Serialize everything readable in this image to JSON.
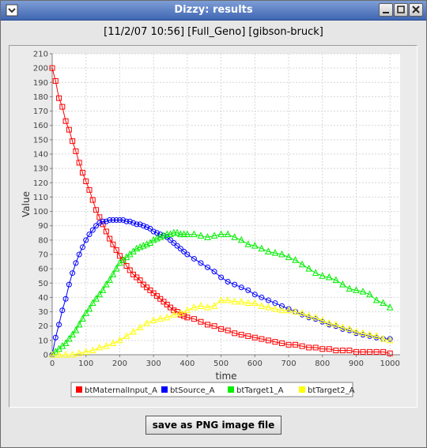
{
  "window": {
    "title": "Dizzy: results",
    "controls": [
      "minimize-icon",
      "maximize-icon",
      "close-icon"
    ]
  },
  "header": {
    "text": "[11/2/07 10:56] [Full_Geno] [gibson-bruck]"
  },
  "button": {
    "label": "save as PNG image file"
  },
  "chart_data": {
    "type": "line",
    "title": "",
    "xlabel": "time",
    "ylabel": "Value",
    "xlim": [
      0,
      1030
    ],
    "ylim": [
      0,
      210
    ],
    "xticks": [
      0,
      100,
      200,
      300,
      400,
      500,
      600,
      700,
      800,
      900,
      1000
    ],
    "yticks": [
      0,
      10,
      20,
      30,
      40,
      50,
      60,
      70,
      80,
      90,
      100,
      110,
      120,
      130,
      140,
      150,
      160,
      170,
      180,
      190,
      200,
      210
    ],
    "grid": true,
    "legend_position": "bottom",
    "series": [
      {
        "name": "btMaternalInput_A",
        "color": "#ff0000",
        "marker": "square",
        "points": [
          [
            0,
            200
          ],
          [
            10,
            191
          ],
          [
            20,
            179
          ],
          [
            30,
            173
          ],
          [
            40,
            163
          ],
          [
            50,
            157
          ],
          [
            60,
            149
          ],
          [
            70,
            142
          ],
          [
            80,
            134
          ],
          [
            90,
            127
          ],
          [
            100,
            121
          ],
          [
            110,
            115
          ],
          [
            120,
            108
          ],
          [
            130,
            101
          ],
          [
            140,
            96
          ],
          [
            150,
            91
          ],
          [
            160,
            86
          ],
          [
            170,
            81
          ],
          [
            180,
            77
          ],
          [
            190,
            73
          ],
          [
            200,
            69
          ],
          [
            210,
            66
          ],
          [
            220,
            62
          ],
          [
            230,
            59
          ],
          [
            240,
            56
          ],
          [
            250,
            54
          ],
          [
            260,
            52
          ],
          [
            270,
            49
          ],
          [
            280,
            47
          ],
          [
            290,
            45
          ],
          [
            300,
            43
          ],
          [
            310,
            41
          ],
          [
            320,
            39
          ],
          [
            330,
            37
          ],
          [
            340,
            35
          ],
          [
            350,
            33
          ],
          [
            360,
            31
          ],
          [
            370,
            30
          ],
          [
            380,
            28
          ],
          [
            390,
            27
          ],
          [
            400,
            26
          ],
          [
            420,
            25
          ],
          [
            440,
            23
          ],
          [
            460,
            21
          ],
          [
            480,
            20
          ],
          [
            500,
            18
          ],
          [
            520,
            17
          ],
          [
            540,
            15
          ],
          [
            560,
            14
          ],
          [
            580,
            13
          ],
          [
            600,
            12
          ],
          [
            620,
            11
          ],
          [
            640,
            10
          ],
          [
            660,
            9
          ],
          [
            680,
            8
          ],
          [
            700,
            7
          ],
          [
            720,
            7
          ],
          [
            740,
            6
          ],
          [
            760,
            5
          ],
          [
            780,
            5
          ],
          [
            800,
            4
          ],
          [
            820,
            4
          ],
          [
            840,
            3
          ],
          [
            860,
            3
          ],
          [
            880,
            3
          ],
          [
            900,
            2
          ],
          [
            920,
            2
          ],
          [
            940,
            2
          ],
          [
            960,
            2
          ],
          [
            980,
            2
          ],
          [
            1000,
            1
          ]
        ]
      },
      {
        "name": "btSource_A",
        "color": "#0000ff",
        "marker": "circle",
        "points": [
          [
            0,
            0
          ],
          [
            10,
            12
          ],
          [
            20,
            21
          ],
          [
            30,
            31
          ],
          [
            40,
            39
          ],
          [
            50,
            49
          ],
          [
            60,
            57
          ],
          [
            70,
            64
          ],
          [
            80,
            70
          ],
          [
            90,
            75
          ],
          [
            100,
            80
          ],
          [
            110,
            84
          ],
          [
            120,
            87
          ],
          [
            130,
            90
          ],
          [
            140,
            92
          ],
          [
            150,
            93
          ],
          [
            160,
            93
          ],
          [
            170,
            94
          ],
          [
            180,
            94
          ],
          [
            190,
            94
          ],
          [
            200,
            94
          ],
          [
            210,
            94
          ],
          [
            220,
            93
          ],
          [
            230,
            93
          ],
          [
            240,
            92
          ],
          [
            250,
            91
          ],
          [
            260,
            91
          ],
          [
            270,
            90
          ],
          [
            280,
            89
          ],
          [
            290,
            88
          ],
          [
            300,
            86
          ],
          [
            310,
            85
          ],
          [
            320,
            84
          ],
          [
            330,
            83
          ],
          [
            340,
            82
          ],
          [
            350,
            80
          ],
          [
            360,
            78
          ],
          [
            370,
            76
          ],
          [
            380,
            74
          ],
          [
            390,
            72
          ],
          [
            400,
            70
          ],
          [
            420,
            67
          ],
          [
            440,
            64
          ],
          [
            460,
            61
          ],
          [
            480,
            58
          ],
          [
            500,
            54
          ],
          [
            520,
            51
          ],
          [
            540,
            49
          ],
          [
            560,
            47
          ],
          [
            580,
            45
          ],
          [
            600,
            42
          ],
          [
            620,
            40
          ],
          [
            640,
            38
          ],
          [
            660,
            36
          ],
          [
            680,
            34
          ],
          [
            700,
            32
          ],
          [
            720,
            30
          ],
          [
            740,
            28
          ],
          [
            760,
            26
          ],
          [
            780,
            25
          ],
          [
            800,
            23
          ],
          [
            820,
            21
          ],
          [
            840,
            20
          ],
          [
            860,
            18
          ],
          [
            880,
            17
          ],
          [
            900,
            15
          ],
          [
            920,
            14
          ],
          [
            940,
            13
          ],
          [
            960,
            12
          ],
          [
            980,
            11
          ],
          [
            1000,
            11
          ]
        ]
      },
      {
        "name": "btTarget1_A",
        "color": "#00ee00",
        "marker": "triangle",
        "points": [
          [
            0,
            0
          ],
          [
            10,
            2
          ],
          [
            20,
            4
          ],
          [
            30,
            6
          ],
          [
            40,
            8
          ],
          [
            50,
            11
          ],
          [
            60,
            14
          ],
          [
            70,
            17
          ],
          [
            80,
            21
          ],
          [
            90,
            25
          ],
          [
            100,
            29
          ],
          [
            110,
            32
          ],
          [
            120,
            36
          ],
          [
            130,
            39
          ],
          [
            140,
            42
          ],
          [
            150,
            45
          ],
          [
            160,
            49
          ],
          [
            170,
            52
          ],
          [
            180,
            56
          ],
          [
            190,
            60
          ],
          [
            200,
            64
          ],
          [
            210,
            66
          ],
          [
            220,
            68
          ],
          [
            230,
            70
          ],
          [
            240,
            72
          ],
          [
            250,
            74
          ],
          [
            260,
            75
          ],
          [
            270,
            76
          ],
          [
            280,
            77
          ],
          [
            290,
            78
          ],
          [
            300,
            80
          ],
          [
            310,
            81
          ],
          [
            320,
            82
          ],
          [
            330,
            83
          ],
          [
            340,
            84
          ],
          [
            350,
            84
          ],
          [
            360,
            85
          ],
          [
            370,
            85
          ],
          [
            380,
            84
          ],
          [
            390,
            84
          ],
          [
            400,
            84
          ],
          [
            420,
            84
          ],
          [
            440,
            83
          ],
          [
            460,
            82
          ],
          [
            480,
            83
          ],
          [
            500,
            84
          ],
          [
            520,
            84
          ],
          [
            540,
            82
          ],
          [
            560,
            80
          ],
          [
            580,
            77
          ],
          [
            600,
            76
          ],
          [
            620,
            74
          ],
          [
            640,
            72
          ],
          [
            660,
            71
          ],
          [
            680,
            70
          ],
          [
            700,
            68
          ],
          [
            720,
            66
          ],
          [
            740,
            63
          ],
          [
            760,
            60
          ],
          [
            780,
            57
          ],
          [
            800,
            55
          ],
          [
            820,
            54
          ],
          [
            840,
            52
          ],
          [
            860,
            49
          ],
          [
            880,
            46
          ],
          [
            900,
            45
          ],
          [
            920,
            44
          ],
          [
            940,
            42
          ],
          [
            960,
            38
          ],
          [
            980,
            36
          ],
          [
            1000,
            33
          ]
        ]
      },
      {
        "name": "btTarget2_A",
        "color": "#ffff00",
        "marker": "triangle",
        "points": [
          [
            0,
            0
          ],
          [
            20,
            0
          ],
          [
            40,
            0
          ],
          [
            60,
            0
          ],
          [
            80,
            1
          ],
          [
            100,
            2
          ],
          [
            120,
            3
          ],
          [
            140,
            5
          ],
          [
            160,
            6
          ],
          [
            180,
            8
          ],
          [
            200,
            10
          ],
          [
            220,
            13
          ],
          [
            240,
            16
          ],
          [
            260,
            19
          ],
          [
            280,
            22
          ],
          [
            300,
            24
          ],
          [
            320,
            25
          ],
          [
            340,
            26
          ],
          [
            360,
            28
          ],
          [
            380,
            29
          ],
          [
            400,
            31
          ],
          [
            420,
            33
          ],
          [
            440,
            34
          ],
          [
            460,
            33
          ],
          [
            480,
            34
          ],
          [
            500,
            38
          ],
          [
            520,
            38
          ],
          [
            540,
            37
          ],
          [
            560,
            37
          ],
          [
            580,
            36
          ],
          [
            600,
            36
          ],
          [
            620,
            34
          ],
          [
            640,
            33
          ],
          [
            660,
            32
          ],
          [
            680,
            31
          ],
          [
            700,
            31
          ],
          [
            720,
            30
          ],
          [
            740,
            29
          ],
          [
            760,
            27
          ],
          [
            780,
            26
          ],
          [
            800,
            24
          ],
          [
            820,
            22
          ],
          [
            840,
            21
          ],
          [
            860,
            19
          ],
          [
            880,
            18
          ],
          [
            900,
            16
          ],
          [
            920,
            15
          ],
          [
            940,
            14
          ],
          [
            960,
            13
          ],
          [
            980,
            11
          ],
          [
            1000,
            10
          ]
        ]
      }
    ]
  }
}
